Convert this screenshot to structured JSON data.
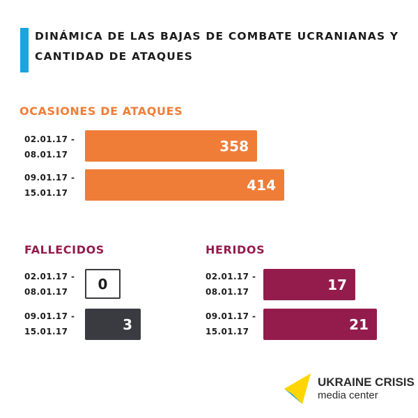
{
  "title": "DINÁMICA DE LAS BAJAS DE COMBATE UCRANIANAS Y CANTIDAD DE ATAQUES",
  "colors": {
    "title_accent": "#1aa5dd",
    "attacks": "#ef7d38",
    "killed_heading": "#931c4c",
    "killed": "#3a3a41",
    "wounded": "#931c4c"
  },
  "chart_data": [
    {
      "type": "bar",
      "orientation": "horizontal",
      "title": "OCASIONES DE ATAQUES",
      "categories": [
        "02.01.17 -\n08.01.17",
        "09.01.17 -\n15.01.17"
      ],
      "values": [
        358,
        414
      ]
    },
    {
      "type": "bar",
      "orientation": "horizontal",
      "title": "FALLECIDOS",
      "categories": [
        "02.01.17 -\n08.01.17",
        "09.01.17 -\n15.01.17"
      ],
      "values": [
        0,
        3
      ]
    },
    {
      "type": "bar",
      "orientation": "horizontal",
      "title": "HERIDOS",
      "categories": [
        "02.01.17 -\n08.01.17",
        "09.01.17 -\n15.01.17"
      ],
      "values": [
        17,
        21
      ]
    }
  ],
  "logo": {
    "line1": "UKRAINE CRISIS",
    "line2": "media center",
    "icon": "ukraine-crisis-logo-icon"
  }
}
